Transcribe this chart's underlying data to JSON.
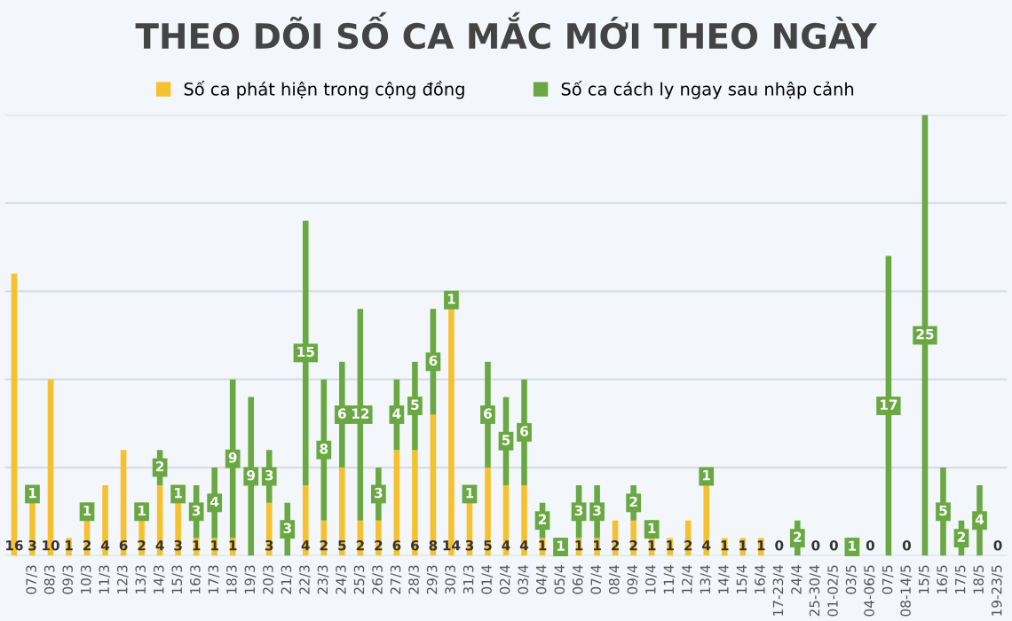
{
  "chart_data": {
    "type": "bar",
    "stacked": true,
    "title": "THEO DÕI SỐ CA MẮC MỚI THEO NGÀY",
    "categories": [
      null,
      "07/3",
      "08/3",
      "09/3",
      "10/3",
      "11/3",
      "12/3",
      "13/3",
      "14/3",
      "15/3",
      "16/3",
      "17/3",
      "18/3",
      "19/3",
      "20/3",
      "21/3",
      "22/3",
      "23/3",
      "24/3",
      "25/3",
      "26/3",
      "27/3",
      "28/3",
      "29/3",
      "30/3",
      "31/3",
      "01/4",
      "02/4",
      "03/4",
      "04/4",
      "05/4",
      "06/4",
      "07/4",
      "08/4",
      "09/4",
      "10/4",
      "11/4",
      "12/4",
      "13/4",
      "14/4",
      "15/4",
      "16/4",
      "17-23/4",
      "24/4",
      "25-30/4",
      "01-02/5",
      "03/5",
      "04-06/5",
      "07/5",
      "08-14/5",
      "15/5",
      "16/5",
      "17/5",
      "18/5",
      "19-23/5"
    ],
    "series": [
      {
        "name": "Số ca phát hiện trong cộng đồng",
        "color": "#f5c12e",
        "values": [
          16,
          3,
          10,
          1,
          2,
          4,
          6,
          2,
          4,
          3,
          1,
          1,
          1,
          0,
          3,
          0,
          4,
          2,
          5,
          2,
          2,
          6,
          6,
          8,
          14,
          3,
          5,
          4,
          4,
          1,
          0,
          1,
          1,
          2,
          2,
          1,
          1,
          2,
          4,
          1,
          1,
          1,
          0,
          0,
          0,
          0,
          0,
          0,
          0,
          0,
          0,
          0,
          0,
          0,
          0
        ],
        "value_labels": [
          "16",
          "3",
          "10",
          "1",
          "2",
          "4",
          "6",
          "2",
          "4",
          "3",
          "1",
          "1",
          "1",
          null,
          "3",
          null,
          "4",
          "2",
          "5",
          "2",
          "2",
          "6",
          "6",
          "8",
          "14",
          "3",
          "5",
          "4",
          "4",
          "1",
          null,
          "1",
          "1",
          "2",
          "2",
          "1",
          "1",
          "2",
          "4",
          "1",
          "1",
          "1",
          "0",
          null,
          "0",
          "0",
          null,
          "0",
          null,
          "0",
          null,
          null,
          null,
          null,
          "0"
        ]
      },
      {
        "name": "Số ca cách ly ngay sau nhập cảnh",
        "color": "#6aa843",
        "values": [
          0,
          1,
          0,
          0,
          1,
          0,
          0,
          1,
          2,
          1,
          3,
          4,
          9,
          9,
          3,
          3,
          15,
          8,
          6,
          12,
          3,
          4,
          5,
          6,
          1,
          1,
          6,
          5,
          6,
          2,
          1,
          3,
          3,
          0,
          2,
          1,
          0,
          0,
          1,
          0,
          0,
          0,
          0,
          2,
          0,
          0,
          1,
          0,
          17,
          0,
          25,
          5,
          2,
          4,
          0
        ],
        "value_labels": [
          null,
          "1",
          null,
          null,
          "1",
          null,
          null,
          "1",
          "2",
          "1",
          "3",
          "4",
          "9",
          "9",
          "3",
          "3",
          "15",
          "8",
          "6",
          "12",
          "3",
          "4",
          "5",
          "6",
          "1",
          "1",
          "6",
          "5",
          "6",
          "2",
          "1",
          "3",
          "3",
          null,
          "2",
          "1",
          null,
          null,
          "1",
          null,
          null,
          null,
          null,
          "2",
          null,
          null,
          "1",
          null,
          "17",
          null,
          "25",
          "5",
          "2",
          "4",
          null
        ]
      }
    ],
    "ylim": [
      0,
      25
    ],
    "yticks": [
      {
        "value": 0,
        "label": null
      },
      {
        "value": 5,
        "label": null
      },
      {
        "value": 10,
        "label": null
      },
      {
        "value": 15,
        "label": null
      },
      {
        "value": 20,
        "label": null
      },
      {
        "value": 25,
        "label": null
      }
    ],
    "tick_labels": "x",
    "grid": "y",
    "legend": "top"
  }
}
